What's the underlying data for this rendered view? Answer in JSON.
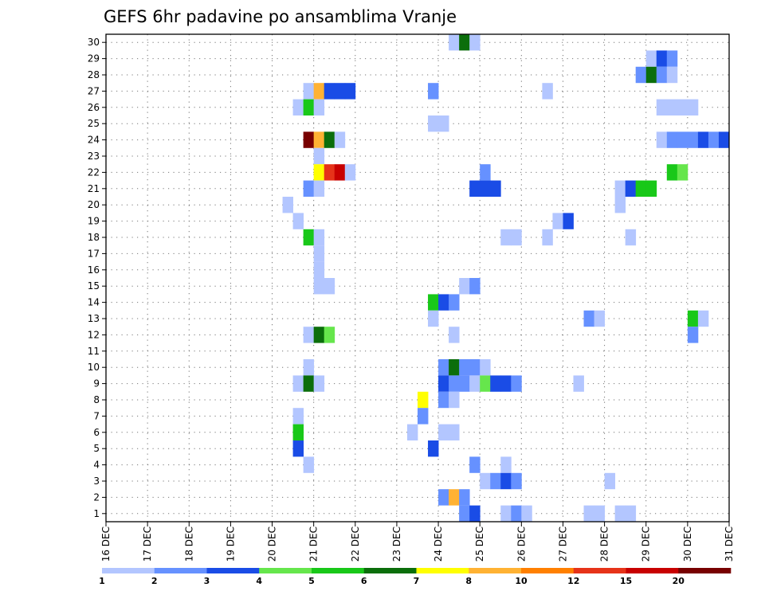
{
  "chart_data": {
    "type": "heatmap",
    "title": "GEFS 6hr padavine po ansamblima Vranje",
    "x_ticks": [
      "16 DEC",
      "17 DEC",
      "18 DEC",
      "19 DEC",
      "20 DEC",
      "21 DEC",
      "22 DEC",
      "23 DEC",
      "24 DEC",
      "25 DEC",
      "26 DEC",
      "27 DEC",
      "28 DEC",
      "29 DEC",
      "30 DEC",
      "31 DEC"
    ],
    "y_ticks": [
      "1",
      "2",
      "3",
      "4",
      "5",
      "6",
      "7",
      "8",
      "9",
      "10",
      "11",
      "12",
      "13",
      "14",
      "15",
      "16",
      "17",
      "18",
      "19",
      "20",
      "21",
      "22",
      "23",
      "24",
      "25",
      "26",
      "27",
      "28",
      "29",
      "30"
    ],
    "xlim": [
      "16 DEC 00Z",
      "31 DEC 00Z"
    ],
    "ylim": [
      0.5,
      30.5
    ],
    "time_step_hours": 6,
    "grid": true,
    "colorbar": {
      "colors": [
        "#b3c6ff",
        "#6691ff",
        "#1a4ce6",
        "#66e64c",
        "#19c819",
        "#0b6e0b",
        "#ffff00",
        "#ffb233",
        "#ff8000",
        "#e63319",
        "#c80000",
        "#780000"
      ],
      "labels": [
        "1",
        "2",
        "3",
        "4",
        "5",
        "6",
        "7",
        "8",
        "10",
        "12",
        "15",
        "20"
      ],
      "placement": "bottom"
    },
    "cells": [
      {
        "member": 30,
        "date": "24 DEC 06Z",
        "level": 1
      },
      {
        "member": 30,
        "date": "24 DEC 12Z",
        "level": 6
      },
      {
        "member": 30,
        "date": "24 DEC 18Z",
        "level": 1
      },
      {
        "member": 29,
        "date": "29 DEC 00Z",
        "level": 1
      },
      {
        "member": 29,
        "date": "29 DEC 06Z",
        "level": 3
      },
      {
        "member": 29,
        "date": "29 DEC 12Z",
        "level": 2
      },
      {
        "member": 28,
        "date": "28 DEC 18Z",
        "level": 2
      },
      {
        "member": 28,
        "date": "29 DEC 00Z",
        "level": 6
      },
      {
        "member": 28,
        "date": "29 DEC 06Z",
        "level": 2
      },
      {
        "member": 28,
        "date": "29 DEC 12Z",
        "level": 1
      },
      {
        "member": 27,
        "date": "20 DEC 18Z",
        "level": 1
      },
      {
        "member": 27,
        "date": "21 DEC 00Z",
        "level": 8
      },
      {
        "member": 27,
        "date": "21 DEC 06Z",
        "level": 3
      },
      {
        "member": 27,
        "date": "21 DEC 12Z",
        "level": 3
      },
      {
        "member": 27,
        "date": "21 DEC 18Z",
        "level": 3
      },
      {
        "member": 27,
        "date": "23 DEC 18Z",
        "level": 2
      },
      {
        "member": 27,
        "date": "26 DEC 12Z",
        "level": 1
      },
      {
        "member": 26,
        "date": "20 DEC 12Z",
        "level": 1
      },
      {
        "member": 26,
        "date": "20 DEC 18Z",
        "level": 5
      },
      {
        "member": 26,
        "date": "21 DEC 00Z",
        "level": 1
      },
      {
        "member": 26,
        "date": "29 DEC 06Z",
        "level": 1
      },
      {
        "member": 26,
        "date": "29 DEC 12Z",
        "level": 1
      },
      {
        "member": 26,
        "date": "29 DEC 18Z",
        "level": 1
      },
      {
        "member": 26,
        "date": "30 DEC 00Z",
        "level": 1
      },
      {
        "member": 25,
        "date": "23 DEC 18Z",
        "level": 1
      },
      {
        "member": 25,
        "date": "24 DEC 00Z",
        "level": 1
      },
      {
        "member": 24,
        "date": "20 DEC 18Z",
        "level": 20
      },
      {
        "member": 24,
        "date": "21 DEC 00Z",
        "level": 8
      },
      {
        "member": 24,
        "date": "21 DEC 06Z",
        "level": 6
      },
      {
        "member": 24,
        "date": "21 DEC 12Z",
        "level": 1
      },
      {
        "member": 24,
        "date": "29 DEC 06Z",
        "level": 1
      },
      {
        "member": 24,
        "date": "29 DEC 12Z",
        "level": 2
      },
      {
        "member": 24,
        "date": "29 DEC 18Z",
        "level": 2
      },
      {
        "member": 24,
        "date": "30 DEC 00Z",
        "level": 2
      },
      {
        "member": 24,
        "date": "30 DEC 06Z",
        "level": 3
      },
      {
        "member": 24,
        "date": "30 DEC 12Z",
        "level": 2
      },
      {
        "member": 24,
        "date": "30 DEC 18Z",
        "level": 3
      },
      {
        "member": 23,
        "date": "21 DEC 00Z",
        "level": 1
      },
      {
        "member": 22,
        "date": "21 DEC 00Z",
        "level": 7
      },
      {
        "member": 22,
        "date": "21 DEC 06Z",
        "level": 12
      },
      {
        "member": 22,
        "date": "21 DEC 12Z",
        "level": 15
      },
      {
        "member": 22,
        "date": "21 DEC 18Z",
        "level": 1
      },
      {
        "member": 22,
        "date": "25 DEC 00Z",
        "level": 2
      },
      {
        "member": 22,
        "date": "29 DEC 12Z",
        "level": 5
      },
      {
        "member": 22,
        "date": "29 DEC 18Z",
        "level": 4
      },
      {
        "member": 21,
        "date": "20 DEC 18Z",
        "level": 2
      },
      {
        "member": 21,
        "date": "21 DEC 00Z",
        "level": 1
      },
      {
        "member": 21,
        "date": "24 DEC 18Z",
        "level": 3
      },
      {
        "member": 21,
        "date": "25 DEC 00Z",
        "level": 3
      },
      {
        "member": 21,
        "date": "25 DEC 06Z",
        "level": 3
      },
      {
        "member": 21,
        "date": "28 DEC 06Z",
        "level": 1
      },
      {
        "member": 21,
        "date": "28 DEC 12Z",
        "level": 3
      },
      {
        "member": 21,
        "date": "28 DEC 18Z",
        "level": 5
      },
      {
        "member": 21,
        "date": "29 DEC 00Z",
        "level": 5
      },
      {
        "member": 20,
        "date": "20 DEC 06Z",
        "level": 1
      },
      {
        "member": 20,
        "date": "28 DEC 06Z",
        "level": 1
      },
      {
        "member": 19,
        "date": "20 DEC 12Z",
        "level": 1
      },
      {
        "member": 19,
        "date": "26 DEC 18Z",
        "level": 1
      },
      {
        "member": 19,
        "date": "27 DEC 00Z",
        "level": 3
      },
      {
        "member": 18,
        "date": "20 DEC 18Z",
        "level": 5
      },
      {
        "member": 18,
        "date": "21 DEC 00Z",
        "level": 1
      },
      {
        "member": 18,
        "date": "25 DEC 12Z",
        "level": 1
      },
      {
        "member": 18,
        "date": "25 DEC 18Z",
        "level": 1
      },
      {
        "member": 18,
        "date": "26 DEC 12Z",
        "level": 1
      },
      {
        "member": 18,
        "date": "28 DEC 12Z",
        "level": 1
      },
      {
        "member": 17,
        "date": "21 DEC 00Z",
        "level": 1
      },
      {
        "member": 16,
        "date": "21 DEC 00Z",
        "level": 1
      },
      {
        "member": 15,
        "date": "21 DEC 00Z",
        "level": 1
      },
      {
        "member": 15,
        "date": "21 DEC 06Z",
        "level": 1
      },
      {
        "member": 15,
        "date": "24 DEC 12Z",
        "level": 1
      },
      {
        "member": 15,
        "date": "24 DEC 18Z",
        "level": 2
      },
      {
        "member": 14,
        "date": "23 DEC 18Z",
        "level": 5
      },
      {
        "member": 14,
        "date": "24 DEC 00Z",
        "level": 3
      },
      {
        "member": 14,
        "date": "24 DEC 06Z",
        "level": 2
      },
      {
        "member": 13,
        "date": "23 DEC 18Z",
        "level": 1
      },
      {
        "member": 13,
        "date": "27 DEC 12Z",
        "level": 2
      },
      {
        "member": 13,
        "date": "27 DEC 18Z",
        "level": 1
      },
      {
        "member": 13,
        "date": "30 DEC 00Z",
        "level": 5
      },
      {
        "member": 13,
        "date": "30 DEC 06Z",
        "level": 1
      },
      {
        "member": 12,
        "date": "20 DEC 18Z",
        "level": 1
      },
      {
        "member": 12,
        "date": "21 DEC 00Z",
        "level": 6
      },
      {
        "member": 12,
        "date": "21 DEC 06Z",
        "level": 4
      },
      {
        "member": 12,
        "date": "24 DEC 06Z",
        "level": 1
      },
      {
        "member": 12,
        "date": "30 DEC 00Z",
        "level": 2
      },
      {
        "member": 10,
        "date": "20 DEC 18Z",
        "level": 1
      },
      {
        "member": 10,
        "date": "24 DEC 00Z",
        "level": 2
      },
      {
        "member": 10,
        "date": "24 DEC 06Z",
        "level": 6
      },
      {
        "member": 10,
        "date": "24 DEC 12Z",
        "level": 2
      },
      {
        "member": 10,
        "date": "24 DEC 18Z",
        "level": 2
      },
      {
        "member": 10,
        "date": "25 DEC 00Z",
        "level": 1
      },
      {
        "member": 9,
        "date": "20 DEC 12Z",
        "level": 1
      },
      {
        "member": 9,
        "date": "20 DEC 18Z",
        "level": 6
      },
      {
        "member": 9,
        "date": "21 DEC 00Z",
        "level": 1
      },
      {
        "member": 9,
        "date": "24 DEC 00Z",
        "level": 3
      },
      {
        "member": 9,
        "date": "24 DEC 06Z",
        "level": 2
      },
      {
        "member": 9,
        "date": "24 DEC 12Z",
        "level": 2
      },
      {
        "member": 9,
        "date": "24 DEC 18Z",
        "level": 1
      },
      {
        "member": 9,
        "date": "25 DEC 00Z",
        "level": 4
      },
      {
        "member": 9,
        "date": "25 DEC 06Z",
        "level": 3
      },
      {
        "member": 9,
        "date": "25 DEC 12Z",
        "level": 3
      },
      {
        "member": 9,
        "date": "25 DEC 18Z",
        "level": 2
      },
      {
        "member": 9,
        "date": "27 DEC 06Z",
        "level": 1
      },
      {
        "member": 8,
        "date": "23 DEC 12Z",
        "level": 7
      },
      {
        "member": 8,
        "date": "24 DEC 00Z",
        "level": 2
      },
      {
        "member": 8,
        "date": "24 DEC 06Z",
        "level": 1
      },
      {
        "member": 7,
        "date": "20 DEC 12Z",
        "level": 1
      },
      {
        "member": 7,
        "date": "23 DEC 12Z",
        "level": 2
      },
      {
        "member": 6,
        "date": "20 DEC 12Z",
        "level": 5
      },
      {
        "member": 6,
        "date": "23 DEC 06Z",
        "level": 1
      },
      {
        "member": 6,
        "date": "24 DEC 00Z",
        "level": 1
      },
      {
        "member": 6,
        "date": "24 DEC 06Z",
        "level": 1
      },
      {
        "member": 5,
        "date": "20 DEC 12Z",
        "level": 3
      },
      {
        "member": 5,
        "date": "23 DEC 18Z",
        "level": 3
      },
      {
        "member": 4,
        "date": "20 DEC 18Z",
        "level": 1
      },
      {
        "member": 4,
        "date": "24 DEC 18Z",
        "level": 2
      },
      {
        "member": 4,
        "date": "25 DEC 12Z",
        "level": 1
      },
      {
        "member": 3,
        "date": "25 DEC 00Z",
        "level": 1
      },
      {
        "member": 3,
        "date": "25 DEC 06Z",
        "level": 2
      },
      {
        "member": 3,
        "date": "25 DEC 12Z",
        "level": 3
      },
      {
        "member": 3,
        "date": "25 DEC 18Z",
        "level": 2
      },
      {
        "member": 3,
        "date": "28 DEC 00Z",
        "level": 1
      },
      {
        "member": 2,
        "date": "24 DEC 00Z",
        "level": 2
      },
      {
        "member": 2,
        "date": "24 DEC 06Z",
        "level": 8
      },
      {
        "member": 2,
        "date": "24 DEC 12Z",
        "level": 2
      },
      {
        "member": 1,
        "date": "24 DEC 12Z",
        "level": 2
      },
      {
        "member": 1,
        "date": "24 DEC 18Z",
        "level": 3
      },
      {
        "member": 1,
        "date": "25 DEC 12Z",
        "level": 1
      },
      {
        "member": 1,
        "date": "25 DEC 18Z",
        "level": 2
      },
      {
        "member": 1,
        "date": "26 DEC 00Z",
        "level": 1
      },
      {
        "member": 1,
        "date": "27 DEC 12Z",
        "level": 1
      },
      {
        "member": 1,
        "date": "27 DEC 18Z",
        "level": 1
      },
      {
        "member": 1,
        "date": "28 DEC 06Z",
        "level": 1
      },
      {
        "member": 1,
        "date": "28 DEC 12Z",
        "level": 1
      }
    ]
  }
}
